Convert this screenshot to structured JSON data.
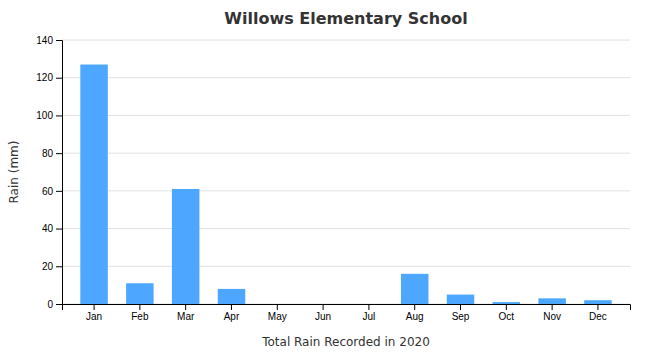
{
  "chart_data": {
    "type": "bar",
    "title": "Willows Elementary School",
    "xlabel": "Total Rain Recorded in 2020",
    "ylabel": "Rain (mm)",
    "categories": [
      "Jan",
      "Feb",
      "Mar",
      "Apr",
      "May",
      "Jun",
      "Jul",
      "Aug",
      "Sep",
      "Oct",
      "Nov",
      "Dec"
    ],
    "values": [
      127,
      11,
      61,
      8,
      0,
      0,
      0,
      16,
      5,
      1,
      3,
      2
    ],
    "color": "#4da6ff",
    "ylim": [
      0,
      140
    ],
    "yticks": [
      0,
      20,
      40,
      60,
      80,
      100,
      120,
      140
    ],
    "grid": true
  }
}
